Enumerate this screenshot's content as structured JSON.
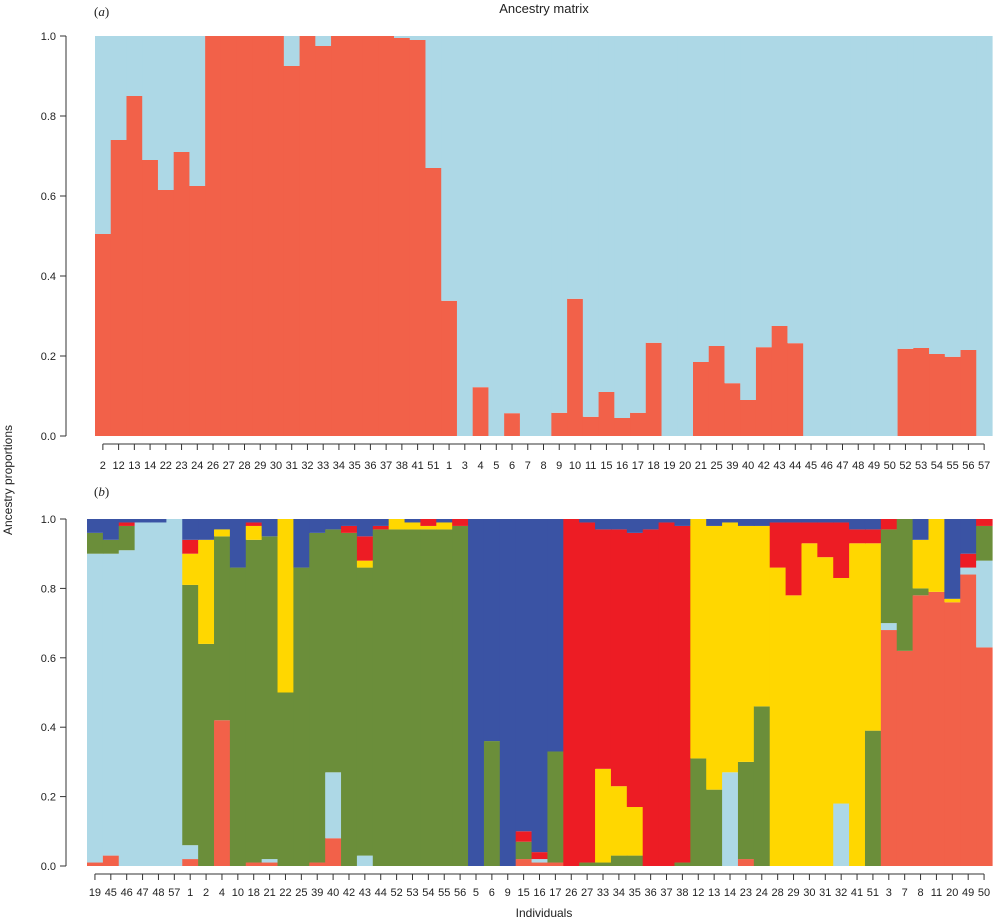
{
  "figure": {
    "title": "Ancestry matrix",
    "xlabel": "Individuals",
    "ylabel": "Ancestry proportions"
  },
  "chart_data": [
    {
      "type": "bar",
      "stacked": true,
      "panel_label": "(a)",
      "panel_letter": "a",
      "title": "Ancestry matrix",
      "ylim": [
        0,
        1
      ],
      "yticks": [
        "0.0",
        "0.2",
        "0.4",
        "0.6",
        "0.8",
        "1.0"
      ],
      "component_colors": [
        "#f26149",
        "#add8e6"
      ],
      "categories": [
        "2",
        "12",
        "13",
        "14",
        "22",
        "23",
        "24",
        "26",
        "27",
        "28",
        "29",
        "30",
        "31",
        "32",
        "33",
        "34",
        "35",
        "36",
        "37",
        "38",
        "41",
        "51",
        "1",
        "3",
        "4",
        "5",
        "6",
        "7",
        "8",
        "9",
        "10",
        "11",
        "15",
        "16",
        "17",
        "18",
        "19",
        "20",
        "21",
        "25",
        "39",
        "40",
        "42",
        "43",
        "44",
        "45",
        "46",
        "47",
        "48",
        "49",
        "50",
        "52",
        "53",
        "54",
        "55",
        "56",
        "57"
      ],
      "components": [
        [
          0.505,
          0.74,
          0.85,
          0.69,
          0.615,
          0.71,
          0.625,
          1,
          1,
          1,
          1,
          1,
          0.925,
          1,
          0.975,
          1,
          1,
          1,
          1,
          0.995,
          0.99,
          0.67,
          0.338,
          0,
          0.122,
          0,
          0.057,
          0,
          0,
          0.058,
          0.343,
          0.048,
          0.11,
          0.045,
          0.058,
          0.233,
          0,
          0,
          0.185,
          0.225,
          0.132,
          0.09,
          0.222,
          0.275,
          0.232,
          0,
          0,
          0,
          0,
          0,
          0,
          0.218,
          0.22,
          0.205,
          0.198,
          0.215,
          0
        ],
        [
          0.495,
          0.26,
          0.15,
          0.31,
          0.385,
          0.29,
          0.375,
          0,
          0,
          0,
          0,
          0,
          0.075,
          0,
          0.025,
          0,
          0,
          0,
          0,
          0.005,
          0.01,
          0.33,
          0.662,
          1,
          0.878,
          1,
          0.943,
          1,
          1,
          0.942,
          0.657,
          0.952,
          0.89,
          0.955,
          0.942,
          0.767,
          1,
          1,
          0.815,
          0.775,
          0.868,
          0.91,
          0.778,
          0.725,
          0.768,
          1,
          1,
          1,
          1,
          1,
          1,
          0.782,
          0.78,
          0.795,
          0.802,
          0.785,
          1
        ]
      ]
    },
    {
      "type": "bar",
      "stacked": true,
      "panel_label": "(b)",
      "panel_letter": "b",
      "ylim": [
        0,
        1
      ],
      "yticks": [
        "0.0",
        "0.2",
        "0.4",
        "0.6",
        "0.8",
        "1.0"
      ],
      "component_colors": [
        "#f26149",
        "#add8e6",
        "#6b8e3a",
        "#ffd700",
        "#ed1c24",
        "#3a53a4"
      ],
      "categories": [
        "19",
        "45",
        "46",
        "47",
        "48",
        "57",
        "1",
        "2",
        "4",
        "10",
        "18",
        "21",
        "22",
        "25",
        "39",
        "40",
        "42",
        "43",
        "44",
        "52",
        "53",
        "54",
        "55",
        "56",
        "5",
        "6",
        "9",
        "15",
        "16",
        "17",
        "26",
        "27",
        "33",
        "34",
        "35",
        "36",
        "37",
        "38",
        "12",
        "13",
        "14",
        "23",
        "24",
        "28",
        "29",
        "30",
        "31",
        "32",
        "41",
        "51",
        "3",
        "7",
        "8",
        "11",
        "20",
        "49",
        "50"
      ],
      "components": [
        [
          0.01,
          0.03,
          0,
          0,
          0,
          0,
          0.02,
          0,
          0.42,
          0,
          0.01,
          0.01,
          0,
          0,
          0.01,
          0.08,
          0,
          0,
          0,
          0,
          0,
          0,
          0,
          0,
          0,
          0,
          0,
          0.02,
          0.01,
          0.01,
          0,
          0,
          0,
          0,
          0,
          0,
          0,
          0,
          0,
          0,
          0,
          0.02,
          0,
          0,
          0,
          0,
          0,
          0,
          0,
          0,
          0.68,
          0.62,
          0.78,
          0.79,
          0.76,
          0.84,
          0.63
        ],
        [
          0.89,
          0.87,
          0.91,
          0.99,
          0.99,
          1,
          0.04,
          0,
          0,
          0,
          0,
          0.01,
          0,
          0,
          0,
          0.19,
          0,
          0.03,
          0,
          0,
          0,
          0,
          0,
          0,
          0,
          0,
          0,
          0,
          0.01,
          0,
          0,
          0,
          0,
          0,
          0,
          0,
          0,
          0,
          0,
          0,
          0.27,
          0,
          0,
          0,
          0,
          0,
          0,
          0.18,
          0,
          0,
          0.02,
          0,
          0,
          0,
          0,
          0.02,
          0.25
        ],
        [
          0.06,
          0.04,
          0.07,
          0,
          0,
          0,
          0.75,
          0.64,
          0.53,
          0.86,
          0.93,
          0.93,
          0.5,
          0.86,
          0.95,
          0.7,
          0.96,
          0.83,
          0.97,
          0.97,
          0.97,
          0.97,
          0.97,
          0.98,
          0,
          0.36,
          0,
          0.05,
          0,
          0.32,
          0,
          0.01,
          0.01,
          0.03,
          0.03,
          0,
          0,
          0.01,
          0.31,
          0.22,
          0,
          0.28,
          0.46,
          0,
          0,
          0,
          0,
          0,
          0,
          0.39,
          0.27,
          0.38,
          0.02,
          0,
          0,
          0,
          0.1
        ],
        [
          0,
          0,
          0,
          0,
          0,
          0,
          0.09,
          0.3,
          0.02,
          0,
          0.04,
          0,
          0.5,
          0,
          0,
          0,
          0,
          0.02,
          0,
          0.03,
          0.02,
          0.01,
          0.02,
          0,
          0,
          0,
          0,
          0,
          0,
          0,
          0,
          0,
          0.27,
          0.2,
          0.14,
          0,
          0,
          0,
          0.69,
          0.76,
          0.72,
          0.68,
          0.52,
          0.86,
          0.78,
          0.93,
          0.89,
          0.65,
          0.93,
          0.54,
          0,
          0,
          0.14,
          0.21,
          0.01,
          0,
          0
        ],
        [
          0,
          0,
          0.01,
          0,
          0,
          0,
          0.04,
          0,
          0,
          0,
          0.01,
          0,
          0,
          0,
          0,
          0,
          0.02,
          0.07,
          0.01,
          0,
          0,
          0.02,
          0,
          0.02,
          0,
          0,
          0,
          0.03,
          0.02,
          0,
          1,
          0.98,
          0.69,
          0.74,
          0.79,
          0.97,
          0.99,
          0.97,
          0,
          0,
          0,
          0,
          0,
          0.13,
          0.21,
          0.06,
          0.1,
          0.16,
          0.04,
          0.04,
          0.03,
          0,
          0,
          0,
          0,
          0.04,
          0.02
        ],
        [
          0.04,
          0.06,
          0.01,
          0.01,
          0.01,
          0,
          0.06,
          0.06,
          0.03,
          0.14,
          0.01,
          0.05,
          0,
          0.14,
          0.04,
          0.03,
          0.02,
          0.05,
          0.02,
          0,
          0.01,
          0,
          0.01,
          0,
          1,
          0.64,
          1,
          0.9,
          0.96,
          0.67,
          0,
          0.01,
          0.03,
          0.03,
          0.04,
          0.03,
          0.01,
          0.02,
          0,
          0.02,
          0.01,
          0.02,
          0.02,
          0.01,
          0.01,
          0.01,
          0.01,
          0.01,
          0.03,
          0.03,
          0,
          0,
          0.06,
          0,
          0.23,
          0.1,
          0
        ]
      ]
    }
  ]
}
